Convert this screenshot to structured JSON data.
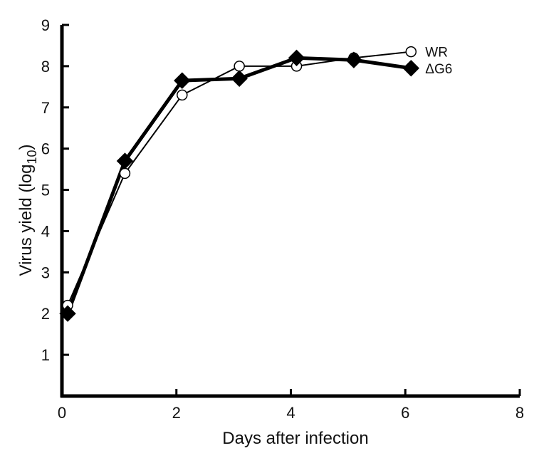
{
  "chart_data": {
    "type": "line",
    "xlabel": "Days after infection",
    "ylabel_main": "Virus yield (log",
    "ylabel_sub": "10",
    "ylabel_close": ")",
    "xlim": [
      0,
      8
    ],
    "ylim": [
      0,
      9
    ],
    "x_ticks": [
      "0",
      "2",
      "4",
      "6",
      "8"
    ],
    "y_ticks": [
      "1",
      "2",
      "3",
      "4",
      "5",
      "6",
      "7",
      "8",
      "9"
    ],
    "grid": false,
    "legend": "direct labels at line ends",
    "series": [
      {
        "name": "WR",
        "marker": "open-circle",
        "color": "#000000",
        "points": [
          [
            0.1,
            2.2
          ],
          [
            1.1,
            5.4
          ],
          [
            2.1,
            7.3
          ],
          [
            3.1,
            8.0
          ],
          [
            4.1,
            8.0
          ],
          [
            5.1,
            8.2
          ],
          [
            6.1,
            8.35
          ]
        ]
      },
      {
        "name": "ΔG6",
        "marker": "filled-diamond",
        "color": "#000000",
        "points": [
          [
            0.1,
            2.0
          ],
          [
            1.1,
            5.7
          ],
          [
            2.1,
            7.65
          ],
          [
            3.1,
            7.7
          ],
          [
            4.1,
            8.2
          ],
          [
            5.1,
            8.15
          ],
          [
            6.1,
            7.95
          ]
        ]
      }
    ]
  }
}
